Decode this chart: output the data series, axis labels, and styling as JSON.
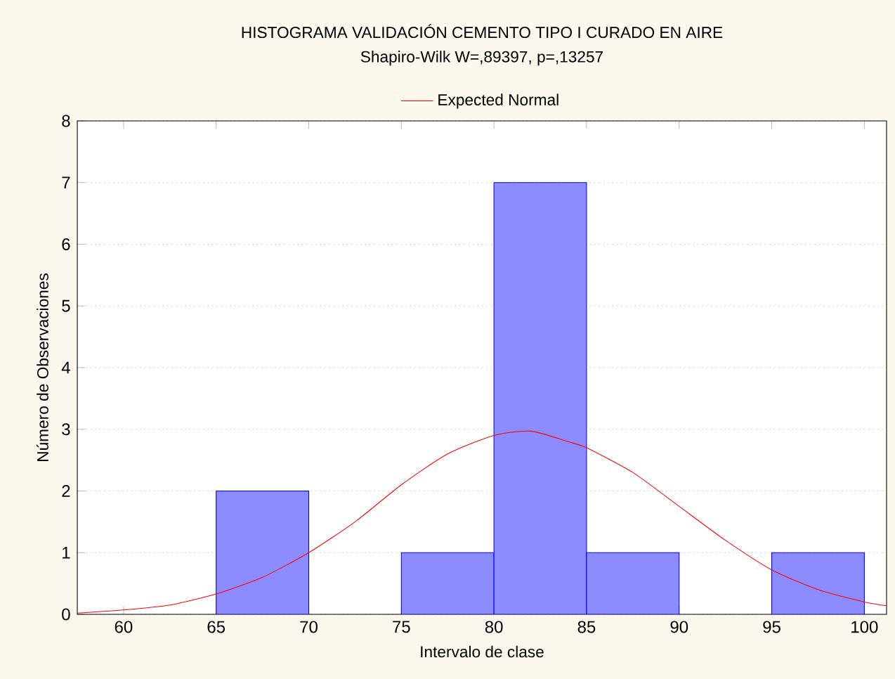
{
  "chart_data": {
    "type": "histogram",
    "title": "HISTOGRAMA VALIDACIÓN CEMENTO TIPO I CURADO EN AIRE",
    "subtitle": "Shapiro-Wilk W=,89397, p=,13257",
    "xlabel": "Intervalo de clase",
    "ylabel": "Número de Observaciones",
    "bins": [
      65,
      70,
      75,
      80,
      85,
      90,
      95,
      100
    ],
    "series": [
      {
        "color": "#0000ff",
        "values": [
          2,
          0,
          1,
          7,
          1,
          0,
          1
        ]
      },
      {
        "type": "line",
        "name": "Expected Normal",
        "color": "#ff0000",
        "x": [
          57.5,
          60,
          62.5,
          65,
          67.5,
          70,
          72.5,
          75,
          77.5,
          80,
          82,
          84,
          85,
          87.5,
          90,
          92.5,
          95,
          97.5,
          100,
          101.2
        ],
        "values": [
          0.02,
          0.07,
          0.15,
          0.33,
          0.6,
          1.0,
          1.5,
          2.1,
          2.6,
          2.9,
          2.97,
          2.8,
          2.7,
          2.3,
          1.75,
          1.2,
          0.72,
          0.4,
          0.2,
          0.14
        ]
      }
    ],
    "xlim": [
      57.5,
      101.2
    ],
    "ylim": [
      0,
      8
    ],
    "xticks": [
      60,
      65,
      70,
      75,
      80,
      85,
      90,
      95,
      100
    ],
    "yticks": [
      0,
      1,
      2,
      3,
      4,
      5,
      6,
      7,
      8
    ],
    "grid": "y",
    "legend": "top"
  }
}
